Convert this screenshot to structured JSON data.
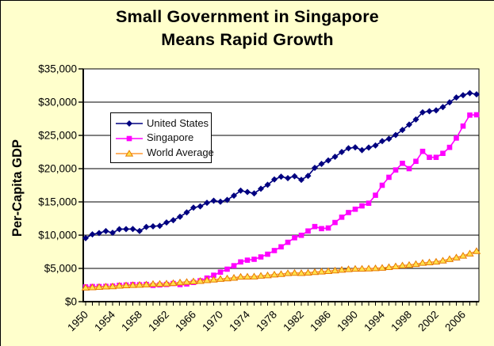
{
  "title": {
    "line1": "Small Government in Singapore",
    "line2": "Means Rapid Growth"
  },
  "y_axis": {
    "title": "Per-Capita GDP",
    "tick_labels": [
      "$0",
      "$5,000",
      "$10,000",
      "$15,000",
      "$20,000",
      "$25,000",
      "$30,000",
      "$35,000"
    ],
    "tick_values": [
      0,
      5000,
      10000,
      15000,
      20000,
      25000,
      30000,
      35000
    ]
  },
  "x_axis": {
    "tick_labels": [
      "1950",
      "1954",
      "1958",
      "1962",
      "1966",
      "1970",
      "1974",
      "1978",
      "1982",
      "1986",
      "1990",
      "1994",
      "1998",
      "2002",
      "2006"
    ],
    "label_every_n_years": 4
  },
  "colors": {
    "background": "#FFFFCC",
    "plot_background": "#FFFFFF",
    "gridline": "#000000",
    "axis": "#000000",
    "united_states": "#000080",
    "singapore": "#FF00FF",
    "world_average_line": "#FF9933",
    "world_average_fill": "#FFE14D",
    "world_average_stroke": "#E87A00"
  },
  "chart_data": {
    "type": "line",
    "title": "Small Government in Singapore Means Rapid Growth",
    "xlabel": "",
    "ylabel": "Per-Capita GDP",
    "ylim": [
      0,
      35000
    ],
    "grid": true,
    "legend_position": "upper-left-inside",
    "x": [
      1950,
      1951,
      1952,
      1953,
      1954,
      1955,
      1956,
      1957,
      1958,
      1959,
      1960,
      1961,
      1962,
      1963,
      1964,
      1965,
      1966,
      1967,
      1968,
      1969,
      1970,
      1971,
      1972,
      1973,
      1974,
      1975,
      1976,
      1977,
      1978,
      1979,
      1980,
      1981,
      1982,
      1983,
      1984,
      1985,
      1986,
      1987,
      1988,
      1989,
      1990,
      1991,
      1992,
      1993,
      1994,
      1995,
      1996,
      1997,
      1998,
      1999,
      2000,
      2001,
      2002,
      2003,
      2004,
      2005,
      2006,
      2007,
      2008
    ],
    "series": [
      {
        "name": "United States",
        "marker": "diamond",
        "line_color": "#000080",
        "marker_fill": "#000080",
        "marker_stroke": "#000080",
        "values": [
          9561,
          10116,
          10316,
          10613,
          10359,
          10897,
          10914,
          10920,
          10631,
          11230,
          11328,
          11402,
          11905,
          12242,
          12773,
          13419,
          14134,
          14330,
          14863,
          15179,
          15030,
          15304,
          15944,
          16689,
          16491,
          16284,
          16975,
          17567,
          18373,
          18789,
          18577,
          18856,
          18325,
          18920,
          20123,
          20717,
          21236,
          21788,
          22499,
          23059,
          23201,
          22785,
          23169,
          23477,
          24130,
          24484,
          25066,
          25819,
          26619,
          27395,
          28467,
          28629,
          28772,
          29257,
          29973,
          30705,
          31049,
          31357,
          31178
        ]
      },
      {
        "name": "Singapore",
        "marker": "square",
        "line_color": "#FF00FF",
        "marker_fill": "#FF00FF",
        "marker_stroke": "#FF00FF",
        "values": [
          2219,
          2275,
          2270,
          2300,
          2340,
          2457,
          2500,
          2570,
          2540,
          2590,
          2450,
          2520,
          2590,
          2730,
          2570,
          2667,
          2891,
          3143,
          3548,
          3974,
          4439,
          4883,
          5402,
          5977,
          6238,
          6371,
          6723,
          7135,
          7684,
          8243,
          8926,
          9608,
          9980,
          10625,
          11292,
          10981,
          11077,
          11900,
          12700,
          13400,
          13900,
          14400,
          14800,
          16000,
          17500,
          18700,
          19800,
          20800,
          20000,
          21100,
          22600,
          21700,
          21700,
          22300,
          23200,
          24600,
          26400,
          28050,
          28100
        ]
      },
      {
        "name": "World Average",
        "marker": "triangle",
        "line_color": "#FF9933",
        "marker_fill": "#FFE14D",
        "marker_stroke": "#E87A00",
        "values": [
          2111,
          2160,
          2210,
          2270,
          2300,
          2390,
          2450,
          2490,
          2530,
          2580,
          2660,
          2680,
          2720,
          2790,
          2890,
          2970,
          3050,
          3110,
          3220,
          3320,
          3420,
          3490,
          3590,
          3740,
          3760,
          3780,
          3890,
          3960,
          4080,
          4150,
          4280,
          4330,
          4300,
          4350,
          4450,
          4520,
          4600,
          4680,
          4790,
          4880,
          4940,
          4950,
          4980,
          5020,
          5090,
          5190,
          5310,
          5440,
          5520,
          5650,
          5830,
          5910,
          6010,
          6170,
          6400,
          6640,
          6900,
          7230,
          7600
        ]
      }
    ]
  }
}
